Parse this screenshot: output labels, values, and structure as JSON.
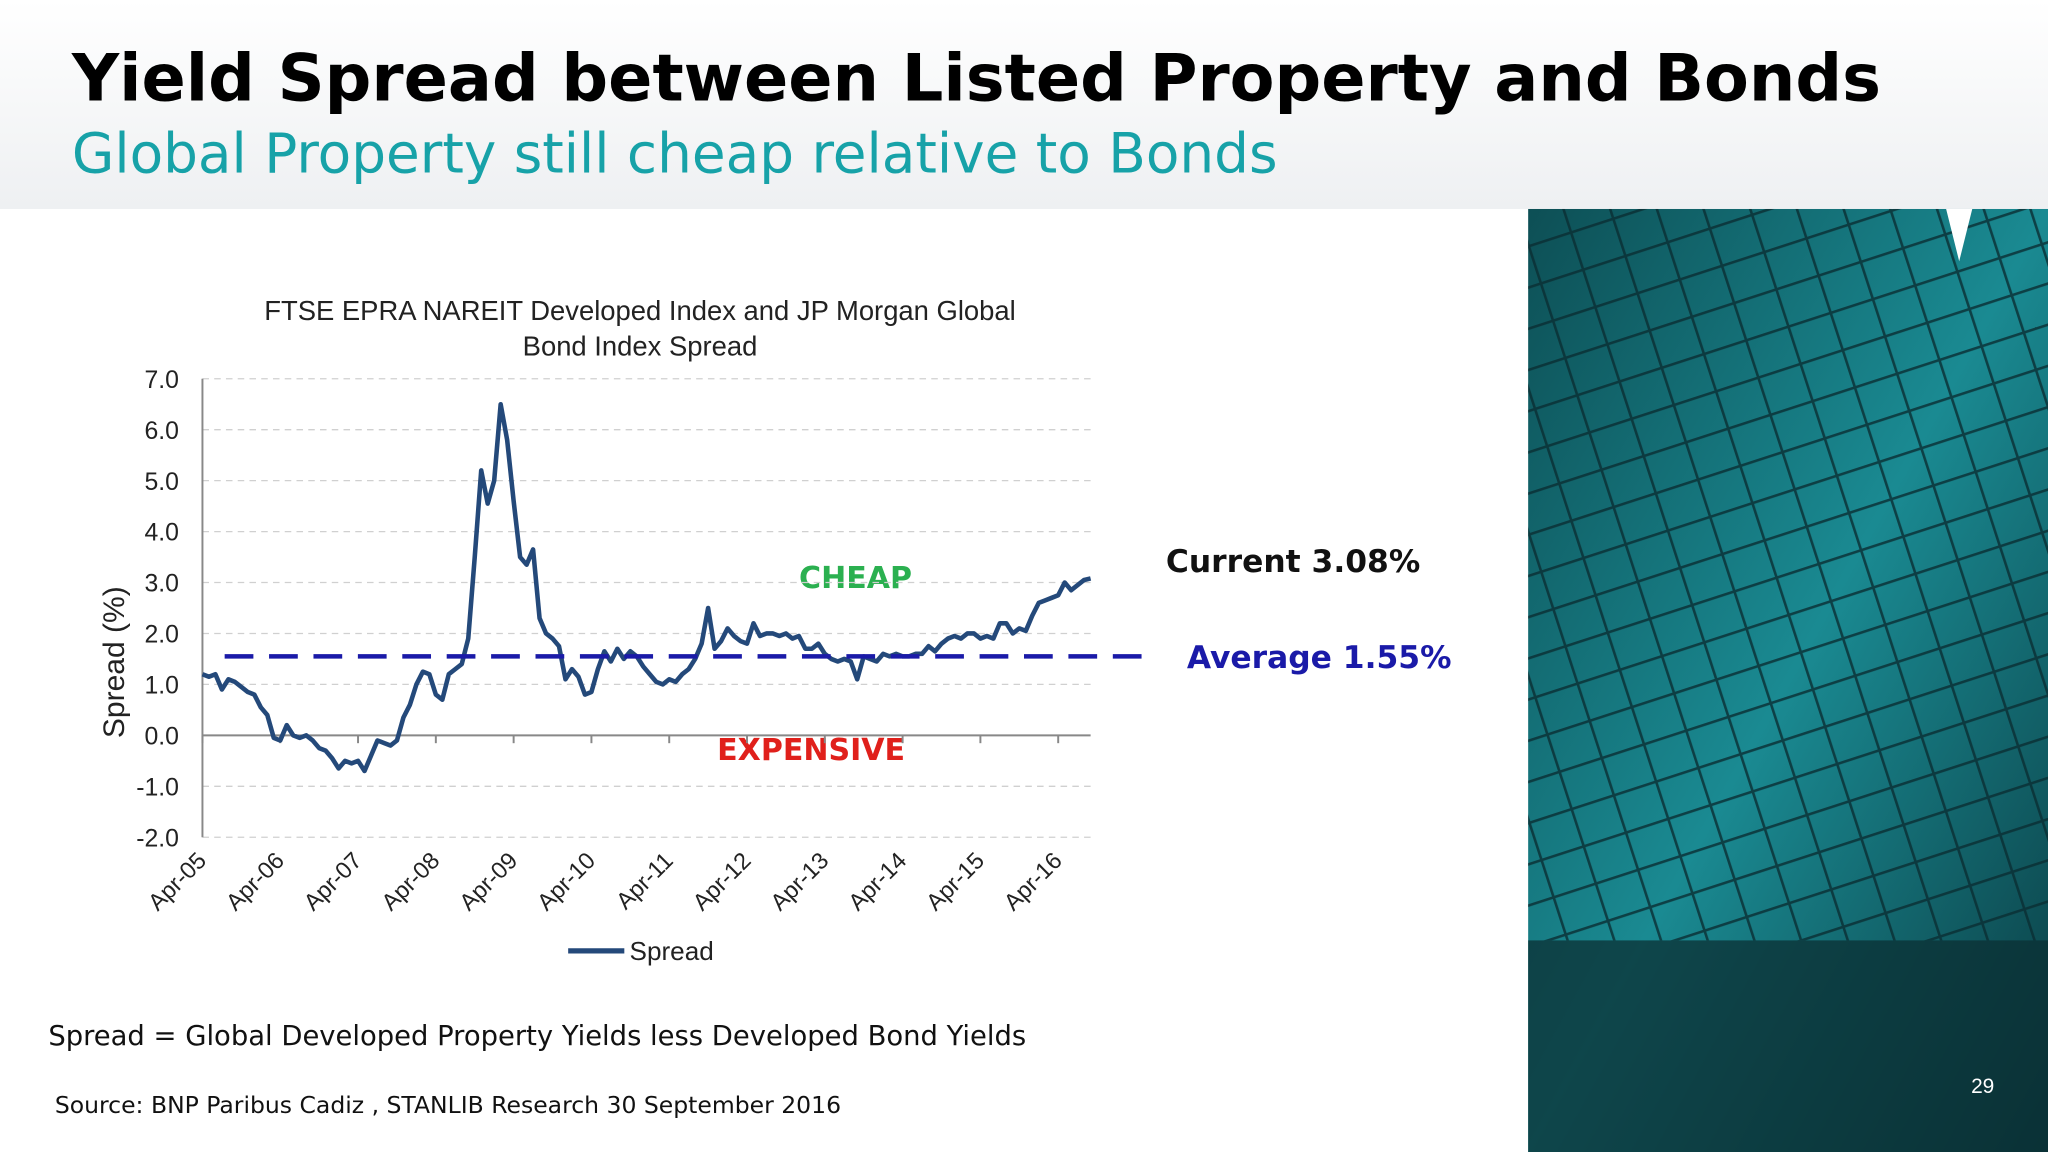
{
  "header": {
    "title": "Yield Spread between Listed Property and Bonds",
    "subtitle": "Global Property still cheap relative to Bonds"
  },
  "chart_data": {
    "type": "line",
    "title": [
      "FTSE EPRA NAREIT Developed Index and JP Morgan Global",
      "Bond Index Spread"
    ],
    "y_label": "Spread (%)",
    "categories": [
      "Apr-05",
      null,
      null,
      null,
      null,
      null,
      null,
      null,
      null,
      null,
      null,
      null,
      "Apr-06",
      null,
      null,
      null,
      null,
      null,
      null,
      null,
      null,
      null,
      null,
      null,
      "Apr-07",
      null,
      null,
      null,
      null,
      null,
      null,
      null,
      null,
      null,
      null,
      null,
      "Apr-08",
      null,
      null,
      null,
      null,
      null,
      null,
      null,
      null,
      null,
      null,
      null,
      "Apr-09",
      null,
      null,
      null,
      null,
      null,
      null,
      null,
      null,
      null,
      null,
      null,
      "Apr-10",
      null,
      null,
      null,
      null,
      null,
      null,
      null,
      null,
      null,
      null,
      null,
      "Apr-11",
      null,
      null,
      null,
      null,
      null,
      null,
      null,
      null,
      null,
      null,
      null,
      "Apr-12",
      null,
      null,
      null,
      null,
      null,
      null,
      null,
      null,
      null,
      null,
      null,
      "Apr-13",
      null,
      null,
      null,
      null,
      null,
      null,
      null,
      null,
      null,
      null,
      null,
      "Apr-14",
      null,
      null,
      null,
      null,
      null,
      null,
      null,
      null,
      null,
      null,
      null,
      "Apr-15",
      null,
      null,
      null,
      null,
      null,
      null,
      null,
      null,
      null,
      null,
      null,
      "Apr-16",
      null,
      null,
      null,
      null,
      null
    ],
    "series": [
      {
        "name": "Spread",
        "color": "#24497a",
        "values": [
          1.2,
          1.15,
          1.2,
          0.9,
          1.1,
          1.05,
          0.95,
          0.85,
          0.8,
          0.55,
          0.4,
          -0.05,
          -0.1,
          0.2,
          0.0,
          -0.05,
          0.0,
          -0.1,
          -0.25,
          -0.3,
          -0.45,
          -0.65,
          -0.5,
          -0.55,
          -0.5,
          -0.7,
          -0.4,
          -0.1,
          -0.15,
          -0.2,
          -0.1,
          0.35,
          0.6,
          1.0,
          1.25,
          1.2,
          0.8,
          0.7,
          1.2,
          1.3,
          1.4,
          1.9,
          3.5,
          5.2,
          4.55,
          5.0,
          6.5,
          5.8,
          4.6,
          3.5,
          3.35,
          3.65,
          2.3,
          2.0,
          1.9,
          1.75,
          1.1,
          1.3,
          1.15,
          0.8,
          0.85,
          1.3,
          1.65,
          1.45,
          1.7,
          1.5,
          1.65,
          1.55,
          1.35,
          1.2,
          1.05,
          1.0,
          1.1,
          1.05,
          1.2,
          1.3,
          1.5,
          1.8,
          2.5,
          1.7,
          1.85,
          2.1,
          1.95,
          1.85,
          1.8,
          2.2,
          1.95,
          2.0,
          2.0,
          1.95,
          2.0,
          1.9,
          1.95,
          1.7,
          1.7,
          1.8,
          1.6,
          1.5,
          1.45,
          1.5,
          1.45,
          1.1,
          1.55,
          1.5,
          1.45,
          1.6,
          1.55,
          1.6,
          1.55,
          1.55,
          1.6,
          1.6,
          1.75,
          1.65,
          1.8,
          1.9,
          1.95,
          1.9,
          2.0,
          2.0,
          1.9,
          1.95,
          1.9,
          2.2,
          2.2,
          2.0,
          2.1,
          2.05,
          2.35,
          2.6,
          2.65,
          2.7,
          2.75,
          3.0,
          2.85,
          2.95,
          3.05,
          3.08
        ]
      }
    ],
    "ylim": [
      -2,
      7
    ],
    "yticks": [
      {
        "value": -2,
        "label": "-2.0"
      },
      {
        "value": -1,
        "label": "-1.0"
      },
      {
        "value": 0,
        "label": "0.0"
      },
      {
        "value": 1,
        "label": "1.0"
      },
      {
        "value": 2,
        "label": "2.0"
      },
      {
        "value": 3,
        "label": "3.0"
      },
      {
        "value": 4,
        "label": "4.0"
      },
      {
        "value": 5,
        "label": "5.0"
      },
      {
        "value": 6,
        "label": "6.0"
      },
      {
        "value": 7,
        "label": "7.0"
      }
    ],
    "grid": true,
    "legend": "bottom",
    "average": 1.55,
    "average_color": "#1a1aa8",
    "average_label": "Average 1.55%",
    "current_label": "Current 3.08%",
    "annotations": [
      "CHEAP",
      "EXPENSIVE"
    ]
  },
  "footnote": "Spread = Global Developed Property Yields less Developed Bond Yields",
  "source": "Source: BNP Paribus Cadiz , STANLIB Research 30 September 2016",
  "page_number": "29"
}
